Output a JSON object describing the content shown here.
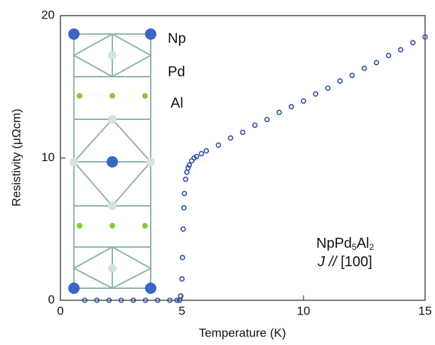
{
  "chart_data": {
    "type": "scatter",
    "x_label": "Temperature (K)",
    "y_label": "Resistivity (μΩcm)",
    "xlim": [
      0,
      15
    ],
    "ylim": [
      0,
      20
    ],
    "xticks": [
      0,
      5,
      10,
      15
    ],
    "yticks": [
      0,
      10,
      20
    ],
    "series": [
      {
        "color": "#2f4f9e",
        "x": [
          1.0,
          1.5,
          2.0,
          2.5,
          3.0,
          3.5,
          4.0,
          4.5,
          4.8,
          4.9,
          4.95,
          5.0,
          5.02,
          5.05,
          5.08,
          5.1,
          5.15,
          5.2,
          5.25,
          5.3,
          5.4,
          5.5,
          5.6,
          5.8,
          6.0,
          6.5,
          7.0,
          7.5,
          8.0,
          8.5,
          9.0,
          9.5,
          10.0,
          10.5,
          11.0,
          11.5,
          12.0,
          12.5,
          13.0,
          13.5,
          14.0,
          14.5,
          15.0
        ],
        "values": [
          0,
          0,
          0,
          0,
          0,
          0,
          0,
          0,
          0,
          0,
          0.3,
          1.5,
          3,
          5,
          6.5,
          7.5,
          8.5,
          9.0,
          9.3,
          9.5,
          9.8,
          10.0,
          10.1,
          10.3,
          10.5,
          10.9,
          11.4,
          11.8,
          12.3,
          12.7,
          13.2,
          13.6,
          14.0,
          14.5,
          14.9,
          15.4,
          15.8,
          16.3,
          16.7,
          17.2,
          17.6,
          18.1,
          18.5
        ]
      }
    ],
    "atom_labels": [
      "Np",
      "Pd",
      "Al"
    ],
    "compound": [
      "NpPd",
      "5",
      "Al",
      "2"
    ],
    "direction": [
      "J",
      "//",
      "[100]"
    ]
  }
}
